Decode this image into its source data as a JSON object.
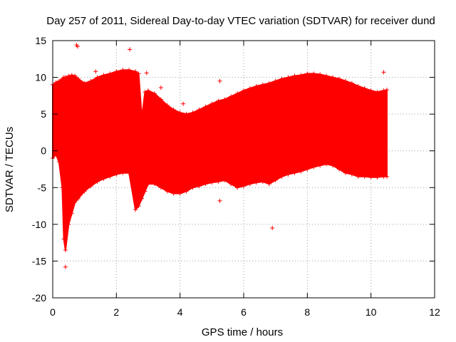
{
  "chart_data": {
    "type": "scatter",
    "title": "Day 257 of 2011, Sidereal Day-to-day VTEC variation (SDTVAR) for receiver dund",
    "xlabel": "GPS time / hours",
    "ylabel": "SDTVAR / TECUs",
    "xlim": [
      0,
      12
    ],
    "ylim": [
      -20,
      15
    ],
    "xticks": [
      0,
      2,
      4,
      6,
      8,
      10,
      12
    ],
    "yticks": [
      -20,
      -15,
      -10,
      -5,
      0,
      5,
      10,
      15
    ],
    "grid": true,
    "marker": "+",
    "color": "#ff0000",
    "series": [
      {
        "name": "SDTVAR",
        "envelope": {
          "x": [
            0,
            0.1,
            0.2,
            0.3,
            0.35,
            0.4,
            0.5,
            0.6,
            0.7,
            0.8,
            1.0,
            1.2,
            1.4,
            1.6,
            1.8,
            2.0,
            2.2,
            2.4,
            2.6,
            2.7,
            2.8,
            2.9,
            3.0,
            3.2,
            3.4,
            3.6,
            3.8,
            4.0,
            4.2,
            4.4,
            4.6,
            4.8,
            5.0,
            5.2,
            5.4,
            5.6,
            5.8,
            6.0,
            6.2,
            6.4,
            6.6,
            6.8,
            7.0,
            7.2,
            7.4,
            7.6,
            7.8,
            8.0,
            8.2,
            8.4,
            8.6,
            8.8,
            9.0,
            9.2,
            9.4,
            9.6,
            9.8,
            10.0,
            10.2,
            10.4,
            10.5
          ],
          "upper": [
            9.0,
            9.3,
            9.5,
            9.8,
            10.0,
            10.0,
            10.2,
            10.3,
            10.2,
            9.8,
            9.2,
            9.5,
            10.0,
            10.3,
            10.5,
            10.8,
            11.0,
            11.0,
            10.8,
            10.5,
            4.5,
            8.0,
            8.2,
            7.8,
            7.0,
            6.2,
            5.6,
            5.2,
            5.0,
            5.2,
            5.6,
            6.0,
            6.4,
            6.8,
            7.0,
            7.4,
            7.8,
            8.2,
            8.5,
            8.8,
            9.0,
            9.2,
            9.5,
            9.8,
            10.0,
            10.2,
            10.3,
            10.5,
            10.5,
            10.4,
            10.2,
            10.0,
            9.8,
            9.5,
            9.2,
            8.8,
            8.5,
            8.2,
            8.0,
            8.2,
            8.3
          ],
          "lower": [
            -1.0,
            -0.5,
            -1.5,
            -5.0,
            -12.0,
            -13.5,
            -10.0,
            -8.5,
            -7.0,
            -6.5,
            -5.5,
            -4.8,
            -4.2,
            -3.8,
            -3.5,
            -3.2,
            -3.0,
            -3.0,
            -8.0,
            -7.5,
            -6.5,
            -5.5,
            -4.5,
            -4.5,
            -5.0,
            -5.5,
            -5.8,
            -5.8,
            -5.5,
            -5.0,
            -4.8,
            -4.5,
            -4.3,
            -4.2,
            -4.0,
            -4.5,
            -5.0,
            -4.8,
            -4.5,
            -4.3,
            -4.2,
            -4.5,
            -4.0,
            -3.5,
            -3.2,
            -3.0,
            -2.8,
            -2.5,
            -2.2,
            -2.0,
            -1.8,
            -2.0,
            -2.5,
            -3.0,
            -3.2,
            -3.5,
            -3.5,
            -3.6,
            -3.6,
            -3.5,
            -3.5
          ]
        },
        "outliers": [
          {
            "x": 0.75,
            "y": 14.4
          },
          {
            "x": 0.78,
            "y": 14.2
          },
          {
            "x": 2.42,
            "y": 13.8
          },
          {
            "x": 3.4,
            "y": 8.6
          },
          {
            "x": 4.1,
            "y": 6.4
          },
          {
            "x": 5.25,
            "y": 9.5
          },
          {
            "x": 5.25,
            "y": -6.8
          },
          {
            "x": 6.9,
            "y": -10.5
          },
          {
            "x": 0.4,
            "y": -15.8
          },
          {
            "x": 1.35,
            "y": 10.8
          },
          {
            "x": 2.95,
            "y": 10.6
          },
          {
            "x": 10.4,
            "y": 10.7
          }
        ]
      }
    ]
  }
}
